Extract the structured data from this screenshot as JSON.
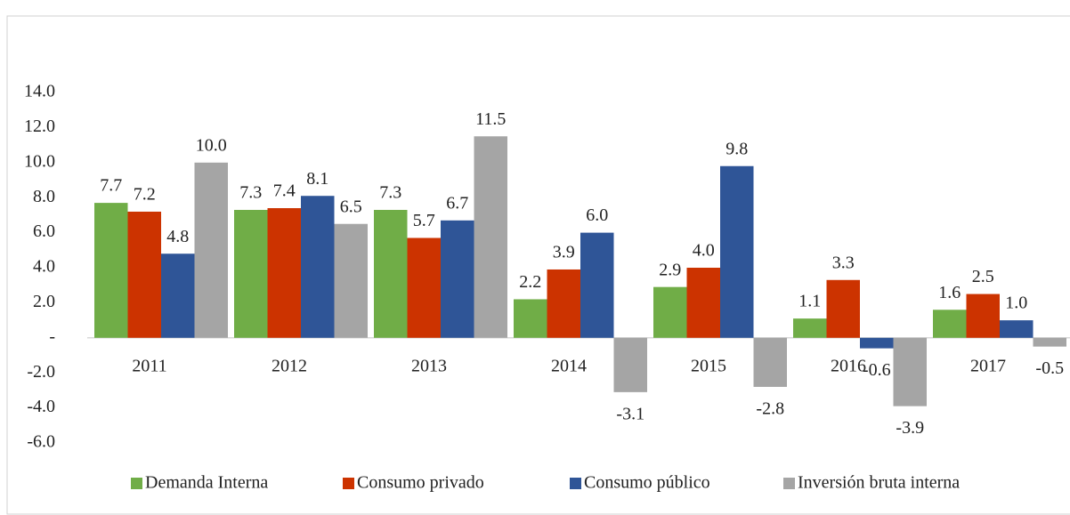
{
  "chart_data": {
    "type": "bar",
    "categories": [
      "2011",
      "2012",
      "2013",
      "2014",
      "2015",
      "2016",
      "2017"
    ],
    "series": [
      {
        "name": "Demanda Interna",
        "color": "#70ad47",
        "values": [
          7.7,
          7.3,
          7.3,
          2.2,
          2.9,
          1.1,
          1.6
        ],
        "value_labels": [
          "7.7",
          "7.3",
          "7.3",
          "2.2",
          "2.9",
          "1.1",
          "1.6"
        ]
      },
      {
        "name": "Consumo privado",
        "color": "#cc3300",
        "values": [
          7.2,
          7.4,
          5.7,
          3.9,
          4.0,
          3.3,
          2.5
        ],
        "value_labels": [
          "7.2",
          "7.4",
          "5.7",
          "3.9",
          "4.0",
          "3.3",
          "2.5"
        ]
      },
      {
        "name": "Consumo público",
        "color": "#2f5597",
        "values": [
          4.8,
          8.1,
          6.7,
          6.0,
          9.8,
          -0.6,
          1.0
        ],
        "value_labels": [
          "4.8",
          "8.1",
          "6.7",
          "6.0",
          "9.8",
          "-0.6",
          "1.0"
        ]
      },
      {
        "name": "Inversión bruta interna",
        "color": "#a5a5a5",
        "values": [
          10.0,
          6.5,
          11.5,
          -3.1,
          -2.8,
          -3.9,
          -0.5
        ],
        "value_labels": [
          "10.0",
          "6.5",
          "11.5",
          "-3.1",
          "-2.8",
          "-3.9",
          "-0.5"
        ]
      }
    ],
    "ylim": [
      -6,
      14
    ],
    "yticks": [
      {
        "value": -6,
        "label": "-6.0"
      },
      {
        "value": -4,
        "label": "-4.0"
      },
      {
        "value": -2,
        "label": "-2.0"
      },
      {
        "value": 0,
        "label": "-"
      },
      {
        "value": 2,
        "label": "2.0"
      },
      {
        "value": 4,
        "label": "4.0"
      },
      {
        "value": 6,
        "label": "6.0"
      },
      {
        "value": 8,
        "label": "8.0"
      },
      {
        "value": 10,
        "label": "10.0"
      },
      {
        "value": 12,
        "label": "12.0"
      },
      {
        "value": 14,
        "label": "14.0"
      }
    ],
    "grid": false,
    "legend": "bottom"
  }
}
